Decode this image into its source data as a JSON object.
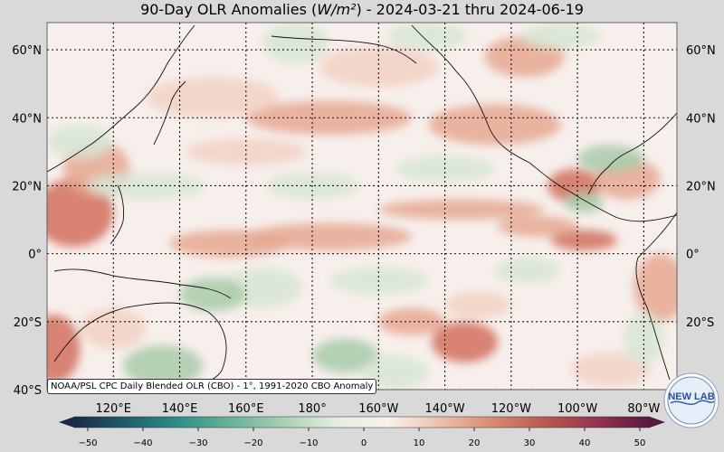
{
  "title_plain": "90-Day OLR Anomalies (",
  "title_unit": "W/m²",
  "title_rest": ") - 2024-03-21 thru 2024-06-19",
  "credit": "NOAA/PSL CPC Daily Blended OLR (CBO) - 1°, 1991-2020 CBO Anomaly",
  "logo_text": "NEW LAB",
  "map": {
    "region": "Pacific Ocean",
    "lon_range": [
      100,
      290
    ],
    "lat_range": [
      -40,
      68
    ],
    "lat_labels": [
      "60°N",
      "40°N",
      "20°N",
      "0°",
      "20°S",
      "40°S"
    ],
    "lat_values": [
      60,
      40,
      20,
      0,
      -20,
      -40
    ],
    "lon_labels": [
      "120°E",
      "140°E",
      "160°E",
      "180°",
      "160°W",
      "140°W",
      "120°W",
      "100°W",
      "80°W"
    ],
    "lon_values": [
      120,
      140,
      160,
      180,
      200,
      220,
      240,
      260,
      280
    ],
    "grid": true
  },
  "colorbar": {
    "min": -50,
    "max": 50,
    "ticks": [
      "−50",
      "−40",
      "−30",
      "−20",
      "−10",
      "0",
      "10",
      "20",
      "30",
      "40",
      "50"
    ],
    "tick_values": [
      -50,
      -40,
      -30,
      -20,
      -10,
      0,
      10,
      20,
      30,
      40,
      50
    ],
    "negative_colors": [
      "#1b2a4a",
      "#1f5f6b",
      "#2e8f87",
      "#69b29b",
      "#a7d0b2",
      "#e3eee0"
    ],
    "positive_colors": [
      "#faf1ec",
      "#ecc1ac",
      "#d88a70",
      "#b9584e",
      "#93334f",
      "#5a1740"
    ]
  },
  "anomaly_colors": {
    "strong_positive": "#d2705e",
    "positive": "#e6a892",
    "weak_positive": "#f2d1c4",
    "neutral": "#f7efec",
    "weak_negative": "#d8e6d3",
    "negative": "#a9cbaa"
  }
}
